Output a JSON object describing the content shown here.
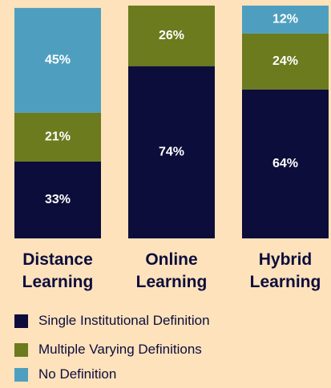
{
  "chart_data": {
    "type": "stacked_bar",
    "categories": [
      "Distance Learning",
      "Online Learning",
      "Hybrid Learning"
    ],
    "series": [
      {
        "name": "Single Institutional Definition",
        "color": "#0d0d3b",
        "values": [
          33,
          74,
          64
        ],
        "value_labels": [
          "33%",
          "74%",
          "64%"
        ]
      },
      {
        "name": "Multiple Varying Definitions",
        "color": "#6b7b1e",
        "values": [
          21,
          26,
          24
        ],
        "value_labels": [
          "21%",
          "26%",
          "24%"
        ]
      },
      {
        "name": "No Definition",
        "color": "#4e9fbf",
        "values": [
          45,
          null,
          12
        ],
        "value_labels": [
          "45%",
          null,
          "12%"
        ]
      }
    ],
    "ylim": [
      0,
      100
    ],
    "legend": "bottom"
  }
}
